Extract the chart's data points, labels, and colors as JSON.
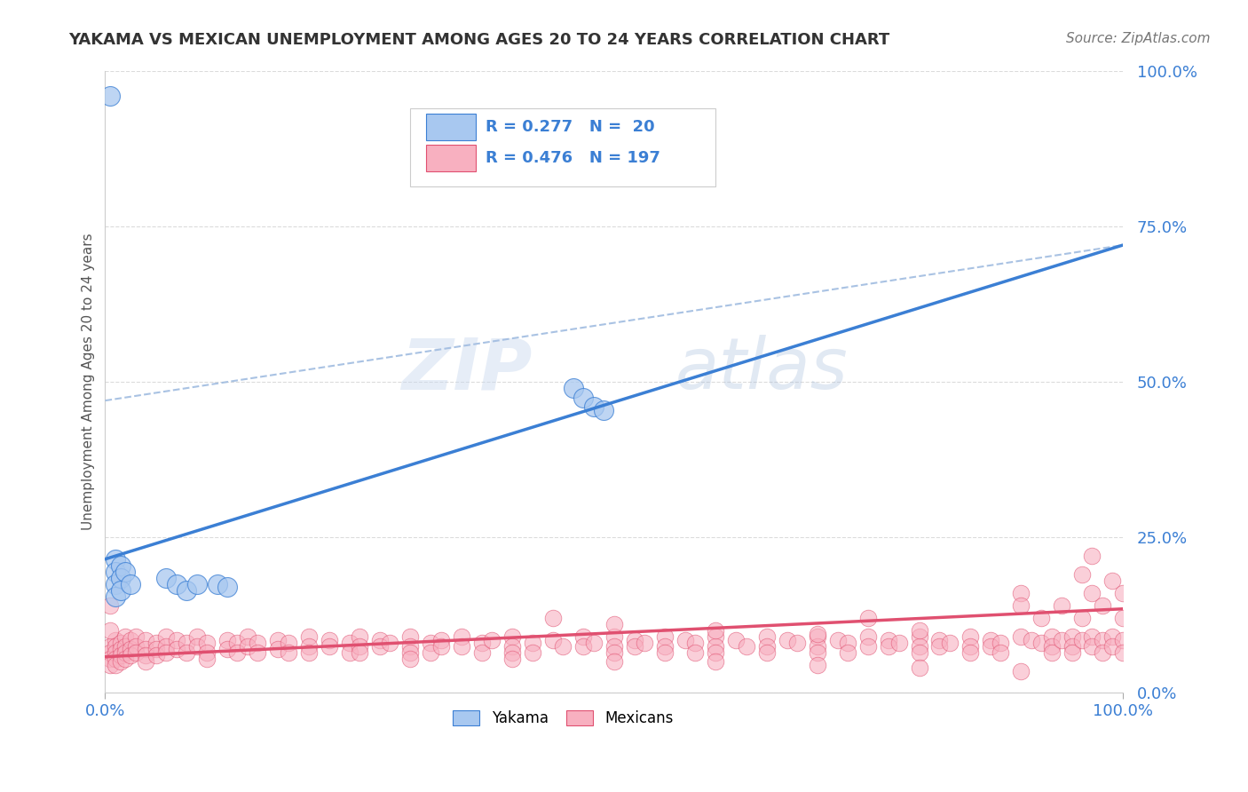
{
  "title": "YAKAMA VS MEXICAN UNEMPLOYMENT AMONG AGES 20 TO 24 YEARS CORRELATION CHART",
  "source_text": "Source: ZipAtlas.com",
  "ylabel": "Unemployment Among Ages 20 to 24 years",
  "xlim": [
    0,
    1
  ],
  "ylim": [
    0,
    1
  ],
  "ytick_labels": [
    "0.0%",
    "25.0%",
    "50.0%",
    "75.0%",
    "100.0%"
  ],
  "ytick_positions": [
    0,
    0.25,
    0.5,
    0.75,
    1.0
  ],
  "grid_color": "#cccccc",
  "background_color": "#ffffff",
  "watermark_line1": "ZIP",
  "watermark_line2": "atlas",
  "yakama_color": "#a8c8f0",
  "mexican_color": "#f8b0c0",
  "yakama_R": 0.277,
  "yakama_N": 20,
  "mexican_R": 0.476,
  "mexican_N": 197,
  "yakama_line_color": "#3b7fd4",
  "mexican_line_color": "#e05070",
  "ref_line_color": "#a0bce0",
  "tick_label_color": "#3b7fd4",
  "title_color": "#333333",
  "ylabel_color": "#555555",
  "source_color": "#777777",
  "yakama_scatter": [
    [
      0.005,
      0.96
    ],
    [
      0.01,
      0.215
    ],
    [
      0.01,
      0.195
    ],
    [
      0.01,
      0.175
    ],
    [
      0.01,
      0.155
    ],
    [
      0.015,
      0.205
    ],
    [
      0.015,
      0.185
    ],
    [
      0.015,
      0.165
    ],
    [
      0.02,
      0.195
    ],
    [
      0.025,
      0.175
    ],
    [
      0.06,
      0.185
    ],
    [
      0.07,
      0.175
    ],
    [
      0.08,
      0.165
    ],
    [
      0.09,
      0.175
    ],
    [
      0.11,
      0.175
    ],
    [
      0.12,
      0.17
    ],
    [
      0.46,
      0.49
    ],
    [
      0.47,
      0.475
    ],
    [
      0.48,
      0.46
    ],
    [
      0.49,
      0.455
    ]
  ],
  "mexican_scatter": [
    [
      0.005,
      0.075
    ],
    [
      0.005,
      0.065
    ],
    [
      0.005,
      0.055
    ],
    [
      0.005,
      0.045
    ],
    [
      0.01,
      0.085
    ],
    [
      0.01,
      0.075
    ],
    [
      0.01,
      0.065
    ],
    [
      0.01,
      0.055
    ],
    [
      0.01,
      0.045
    ],
    [
      0.015,
      0.08
    ],
    [
      0.015,
      0.07
    ],
    [
      0.015,
      0.06
    ],
    [
      0.015,
      0.05
    ],
    [
      0.02,
      0.09
    ],
    [
      0.02,
      0.075
    ],
    [
      0.02,
      0.065
    ],
    [
      0.02,
      0.055
    ],
    [
      0.025,
      0.085
    ],
    [
      0.025,
      0.07
    ],
    [
      0.025,
      0.06
    ],
    [
      0.03,
      0.09
    ],
    [
      0.03,
      0.075
    ],
    [
      0.03,
      0.065
    ],
    [
      0.04,
      0.085
    ],
    [
      0.04,
      0.07
    ],
    [
      0.04,
      0.06
    ],
    [
      0.04,
      0.05
    ],
    [
      0.05,
      0.08
    ],
    [
      0.05,
      0.07
    ],
    [
      0.05,
      0.06
    ],
    [
      0.06,
      0.09
    ],
    [
      0.06,
      0.075
    ],
    [
      0.06,
      0.065
    ],
    [
      0.07,
      0.085
    ],
    [
      0.07,
      0.07
    ],
    [
      0.08,
      0.08
    ],
    [
      0.08,
      0.065
    ],
    [
      0.09,
      0.09
    ],
    [
      0.09,
      0.075
    ],
    [
      0.1,
      0.08
    ],
    [
      0.1,
      0.065
    ],
    [
      0.1,
      0.055
    ],
    [
      0.12,
      0.085
    ],
    [
      0.12,
      0.07
    ],
    [
      0.13,
      0.08
    ],
    [
      0.13,
      0.065
    ],
    [
      0.14,
      0.09
    ],
    [
      0.14,
      0.075
    ],
    [
      0.15,
      0.08
    ],
    [
      0.15,
      0.065
    ],
    [
      0.17,
      0.085
    ],
    [
      0.17,
      0.07
    ],
    [
      0.18,
      0.08
    ],
    [
      0.18,
      0.065
    ],
    [
      0.2,
      0.09
    ],
    [
      0.2,
      0.075
    ],
    [
      0.2,
      0.065
    ],
    [
      0.22,
      0.085
    ],
    [
      0.22,
      0.075
    ],
    [
      0.24,
      0.08
    ],
    [
      0.24,
      0.065
    ],
    [
      0.25,
      0.09
    ],
    [
      0.25,
      0.075
    ],
    [
      0.25,
      0.065
    ],
    [
      0.27,
      0.085
    ],
    [
      0.27,
      0.075
    ],
    [
      0.28,
      0.08
    ],
    [
      0.3,
      0.09
    ],
    [
      0.3,
      0.075
    ],
    [
      0.3,
      0.065
    ],
    [
      0.32,
      0.08
    ],
    [
      0.32,
      0.065
    ],
    [
      0.33,
      0.085
    ],
    [
      0.33,
      0.075
    ],
    [
      0.35,
      0.09
    ],
    [
      0.35,
      0.075
    ],
    [
      0.37,
      0.08
    ],
    [
      0.37,
      0.065
    ],
    [
      0.38,
      0.085
    ],
    [
      0.4,
      0.09
    ],
    [
      0.4,
      0.075
    ],
    [
      0.4,
      0.065
    ],
    [
      0.42,
      0.08
    ],
    [
      0.42,
      0.065
    ],
    [
      0.44,
      0.085
    ],
    [
      0.44,
      0.12
    ],
    [
      0.45,
      0.075
    ],
    [
      0.47,
      0.09
    ],
    [
      0.47,
      0.075
    ],
    [
      0.48,
      0.08
    ],
    [
      0.5,
      0.09
    ],
    [
      0.5,
      0.075
    ],
    [
      0.5,
      0.065
    ],
    [
      0.52,
      0.085
    ],
    [
      0.52,
      0.075
    ],
    [
      0.53,
      0.08
    ],
    [
      0.55,
      0.09
    ],
    [
      0.55,
      0.075
    ],
    [
      0.55,
      0.065
    ],
    [
      0.57,
      0.085
    ],
    [
      0.58,
      0.08
    ],
    [
      0.58,
      0.065
    ],
    [
      0.6,
      0.09
    ],
    [
      0.6,
      0.075
    ],
    [
      0.6,
      0.065
    ],
    [
      0.62,
      0.085
    ],
    [
      0.63,
      0.075
    ],
    [
      0.65,
      0.09
    ],
    [
      0.65,
      0.075
    ],
    [
      0.65,
      0.065
    ],
    [
      0.67,
      0.085
    ],
    [
      0.68,
      0.08
    ],
    [
      0.7,
      0.09
    ],
    [
      0.7,
      0.075
    ],
    [
      0.7,
      0.065
    ],
    [
      0.72,
      0.085
    ],
    [
      0.73,
      0.08
    ],
    [
      0.73,
      0.065
    ],
    [
      0.75,
      0.09
    ],
    [
      0.75,
      0.075
    ],
    [
      0.75,
      0.12
    ],
    [
      0.77,
      0.085
    ],
    [
      0.77,
      0.075
    ],
    [
      0.78,
      0.08
    ],
    [
      0.8,
      0.09
    ],
    [
      0.8,
      0.075
    ],
    [
      0.8,
      0.065
    ],
    [
      0.82,
      0.085
    ],
    [
      0.82,
      0.075
    ],
    [
      0.83,
      0.08
    ],
    [
      0.85,
      0.09
    ],
    [
      0.85,
      0.075
    ],
    [
      0.85,
      0.065
    ],
    [
      0.87,
      0.085
    ],
    [
      0.87,
      0.075
    ],
    [
      0.88,
      0.08
    ],
    [
      0.88,
      0.065
    ],
    [
      0.9,
      0.09
    ],
    [
      0.9,
      0.16
    ],
    [
      0.9,
      0.14
    ],
    [
      0.91,
      0.085
    ],
    [
      0.92,
      0.12
    ],
    [
      0.92,
      0.08
    ],
    [
      0.93,
      0.09
    ],
    [
      0.93,
      0.075
    ],
    [
      0.93,
      0.065
    ],
    [
      0.94,
      0.14
    ],
    [
      0.94,
      0.085
    ],
    [
      0.95,
      0.09
    ],
    [
      0.95,
      0.075
    ],
    [
      0.95,
      0.065
    ],
    [
      0.96,
      0.19
    ],
    [
      0.96,
      0.12
    ],
    [
      0.96,
      0.085
    ],
    [
      0.97,
      0.16
    ],
    [
      0.97,
      0.09
    ],
    [
      0.97,
      0.075
    ],
    [
      0.98,
      0.14
    ],
    [
      0.98,
      0.085
    ],
    [
      0.98,
      0.065
    ],
    [
      0.99,
      0.18
    ],
    [
      0.99,
      0.09
    ],
    [
      0.99,
      0.075
    ],
    [
      1.0,
      0.16
    ],
    [
      1.0,
      0.12
    ],
    [
      1.0,
      0.085
    ],
    [
      1.0,
      0.065
    ],
    [
      0.5,
      0.11
    ],
    [
      0.6,
      0.1
    ],
    [
      0.7,
      0.095
    ],
    [
      0.8,
      0.1
    ],
    [
      0.3,
      0.055
    ],
    [
      0.4,
      0.055
    ],
    [
      0.5,
      0.05
    ],
    [
      0.6,
      0.05
    ],
    [
      0.7,
      0.045
    ],
    [
      0.8,
      0.04
    ],
    [
      0.9,
      0.035
    ],
    [
      0.97,
      0.22
    ],
    [
      0.005,
      0.14
    ],
    [
      0.005,
      0.1
    ]
  ],
  "yakama_line": [
    [
      0.0,
      0.215
    ],
    [
      1.0,
      0.72
    ]
  ],
  "mexican_line": [
    [
      0.0,
      0.058
    ],
    [
      1.0,
      0.135
    ]
  ],
  "ref_line": [
    [
      0.0,
      0.47
    ],
    [
      1.0,
      0.72
    ]
  ]
}
